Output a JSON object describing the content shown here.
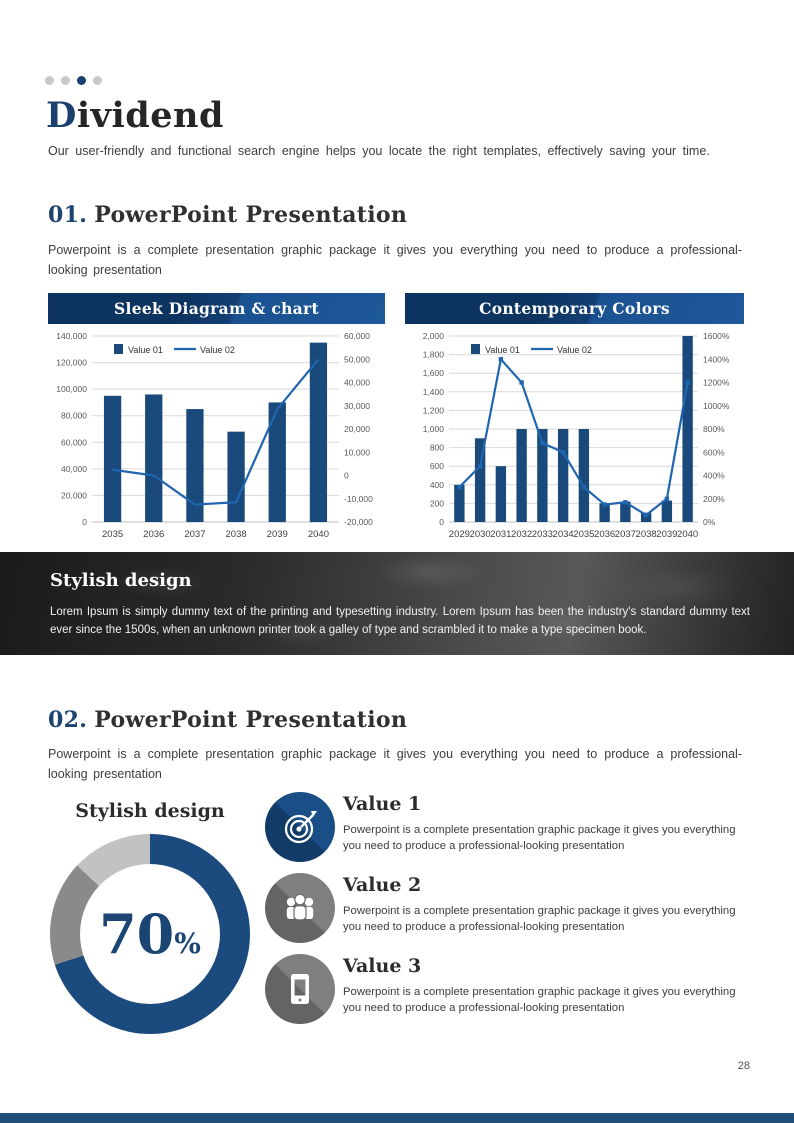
{
  "header": {
    "pagination_dots": {
      "total": 4,
      "active_index": 2
    },
    "title_initial": "D",
    "title_rest": "ividend",
    "subtitle": "Our user-friendly and functional search engine helps you locate the right templates, effectively saving your time."
  },
  "section1": {
    "number": "01.",
    "title": "PowerPoint Presentation",
    "description": "Powerpoint is a complete presentation graphic package it gives you everything you need to produce a professional-looking presentation"
  },
  "section2": {
    "number": "02.",
    "title": "PowerPoint Presentation",
    "description": "Powerpoint is a complete presentation graphic package it gives you everything you need to produce a professional-looking presentation"
  },
  "band": {
    "title": "Stylish design",
    "text": "Lorem Ipsum is simply dummy text of the printing and typesetting industry. Lorem Ipsum has been the industry's standard dummy text ever since the 1500s, when an unknown printer took a galley of type and scrambled it to make a type specimen book."
  },
  "values": {
    "items": [
      {
        "title": "Value 1",
        "icon": "target-icon",
        "description": "Powerpoint is a complete presentation graphic package it gives you everything you need to produce a professional-looking presentation"
      },
      {
        "title": "Value 2",
        "icon": "people-icon",
        "description": "Powerpoint is a complete presentation graphic package it gives you everything you need to produce a professional-looking presentation"
      },
      {
        "title": "Value 3",
        "icon": "smartphone-icon",
        "description": "Powerpoint is a complete presentation graphic package it gives you everything you need to produce a professional-looking presentation"
      }
    ]
  },
  "footer": {
    "page_number": "28"
  },
  "colors": {
    "accent_navy": "#1b3f6e",
    "bar_navy": "#1a4a7c",
    "line_blue": "#2065b0"
  },
  "chart_data": [
    {
      "type": "bar",
      "subtype": "combo-bar-line",
      "title": "Sleek Diagram & chart",
      "categories": [
        "2035",
        "2036",
        "2037",
        "2038",
        "2039",
        "2040"
      ],
      "series": [
        {
          "name": "Value 01",
          "type": "bar",
          "axis": "left",
          "values": [
            95000,
            96000,
            85000,
            68000,
            90000,
            135000
          ]
        },
        {
          "name": "Value 02",
          "type": "line",
          "axis": "right",
          "values": [
            2500,
            0,
            -12500,
            -11500,
            28500,
            50000
          ]
        }
      ],
      "left_axis": {
        "min": 0,
        "max": 140000,
        "step": 20000,
        "format": "number"
      },
      "right_axis": {
        "min": -20000,
        "max": 60000,
        "step": 10000,
        "format": "number"
      },
      "legend_position": "top-left",
      "grid": true,
      "markers": false,
      "bar_width_ratio": 0.42,
      "colors": {
        "bar": "#1a4a7c",
        "line": "#2065b0"
      }
    },
    {
      "type": "bar",
      "subtype": "combo-bar-line",
      "title": "Contemporary Colors",
      "categories": [
        "2029",
        "2030",
        "2031",
        "2032",
        "2033",
        "2034",
        "2035",
        "2036",
        "2037",
        "2038",
        "2039",
        "2040"
      ],
      "series": [
        {
          "name": "Value 01",
          "type": "bar",
          "axis": "left",
          "values": [
            400,
            900,
            600,
            1000,
            1000,
            1000,
            1000,
            200,
            220,
            100,
            230,
            2000
          ]
        },
        {
          "name": "Value 02",
          "type": "line",
          "axis": "right",
          "values": [
            300,
            480,
            1400,
            1200,
            680,
            600,
            300,
            150,
            170,
            60,
            200,
            1200
          ]
        }
      ],
      "left_axis": {
        "min": 0,
        "max": 2000,
        "step": 200,
        "format": "number"
      },
      "right_axis": {
        "min": 0,
        "max": 1600,
        "step": 200,
        "format": "percent"
      },
      "legend_position": "top-left",
      "grid": true,
      "markers": true,
      "bar_width_ratio": 0.5,
      "colors": {
        "bar": "#1a4a7c",
        "line": "#2065b0"
      }
    },
    {
      "type": "pie",
      "subtype": "donut",
      "title": "Stylish design",
      "center_label": "70",
      "center_label_suffix": "%",
      "segments": [
        {
          "name": "filled",
          "value": 70,
          "color": "#1b4a7e"
        },
        {
          "name": "gray",
          "value": 17,
          "color": "#8a8a8a"
        },
        {
          "name": "light-gray",
          "value": 13,
          "color": "#c2c2c2"
        }
      ]
    }
  ]
}
